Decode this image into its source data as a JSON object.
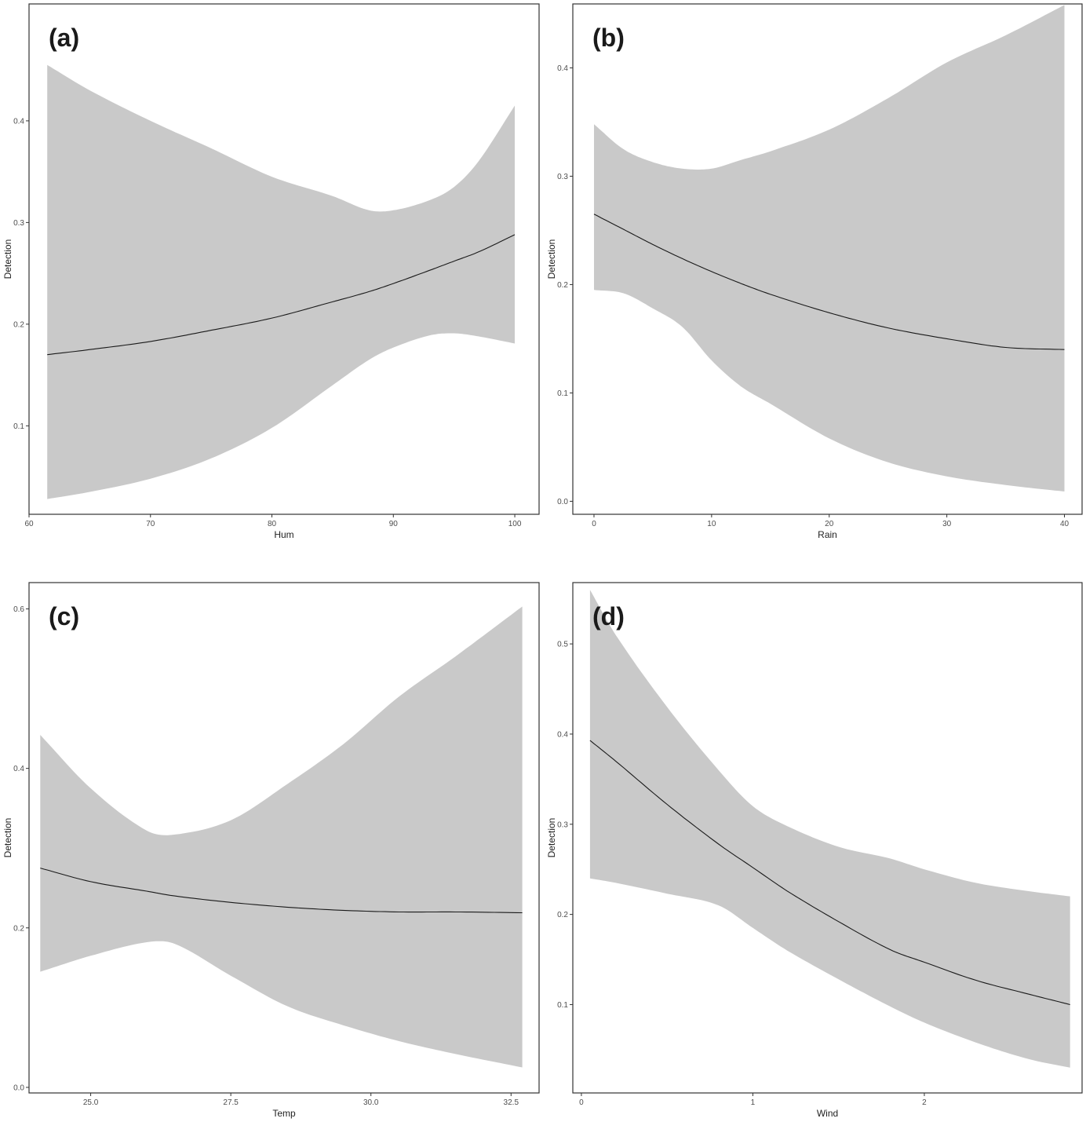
{
  "chart_data": [
    {
      "type": "line",
      "panel_label": "(a)",
      "xlabel": "Hum",
      "ylabel": "Detection",
      "xlim": [
        60,
        102
      ],
      "ylim": [
        0.013,
        0.515
      ],
      "xticks": [
        60,
        70,
        80,
        90,
        100
      ],
      "yticks": [
        0.1,
        0.2,
        0.3,
        0.4
      ],
      "xtick_labels": [
        "60",
        "70",
        "80",
        "90",
        "100"
      ],
      "ytick_labels": [
        "0.1",
        "0.2",
        "0.3",
        "0.4"
      ],
      "grid": false,
      "band_color": "#c9c9c9",
      "line_color": "#1a1a1a",
      "x": [
        61.5,
        65,
        70,
        75,
        80,
        85,
        88,
        90,
        93,
        95,
        97,
        100
      ],
      "y": [
        0.17,
        0.175,
        0.183,
        0.194,
        0.206,
        0.222,
        0.232,
        0.24,
        0.253,
        0.262,
        0.271,
        0.288
      ],
      "lower": [
        0.028,
        0.035,
        0.048,
        0.068,
        0.098,
        0.14,
        0.165,
        0.177,
        0.189,
        0.191,
        0.188,
        0.181
      ],
      "upper": [
        0.455,
        0.43,
        0.4,
        0.373,
        0.345,
        0.326,
        0.312,
        0.312,
        0.322,
        0.335,
        0.36,
        0.415
      ]
    },
    {
      "type": "line",
      "panel_label": "(b)",
      "xlabel": "Rain",
      "ylabel": "Detection",
      "xlim": [
        -1.8,
        41.5
      ],
      "ylim": [
        -0.012,
        0.459
      ],
      "xticks": [
        0,
        10,
        20,
        30,
        40
      ],
      "yticks": [
        0.0,
        0.1,
        0.2,
        0.3,
        0.4
      ],
      "xtick_labels": [
        "0",
        "10",
        "20",
        "30",
        "40"
      ],
      "ytick_labels": [
        "0.0",
        "0.1",
        "0.2",
        "0.3",
        "0.4"
      ],
      "grid": false,
      "band_color": "#c9c9c9",
      "line_color": "#1a1a1a",
      "x": [
        0,
        2.5,
        5,
        7.5,
        10,
        12.5,
        15,
        20,
        25,
        30,
        35,
        40
      ],
      "y": [
        0.265,
        0.251,
        0.237,
        0.224,
        0.212,
        0.201,
        0.191,
        0.174,
        0.16,
        0.15,
        0.142,
        0.14
      ],
      "lower": [
        0.195,
        0.192,
        0.178,
        0.161,
        0.13,
        0.106,
        0.09,
        0.058,
        0.036,
        0.023,
        0.015,
        0.009
      ],
      "upper": [
        0.348,
        0.325,
        0.313,
        0.307,
        0.307,
        0.315,
        0.323,
        0.343,
        0.372,
        0.405,
        0.43,
        0.458
      ]
    },
    {
      "type": "line",
      "panel_label": "(c)",
      "xlabel": "Temp",
      "ylabel": "Detection",
      "xlim": [
        23.9,
        33.0
      ],
      "ylim": [
        -0.007,
        0.633
      ],
      "xticks": [
        25.0,
        27.5,
        30.0,
        32.5
      ],
      "yticks": [
        0.0,
        0.2,
        0.4,
        0.6
      ],
      "xtick_labels": [
        "25.0",
        "27.5",
        "30.0",
        "32.5"
      ],
      "ytick_labels": [
        "0.0",
        "0.2",
        "0.4",
        "0.6"
      ],
      "grid": false,
      "band_color": "#c9c9c9",
      "line_color": "#1a1a1a",
      "x": [
        24.1,
        25.0,
        26.0,
        26.5,
        27.5,
        28.5,
        29.5,
        30.5,
        31.5,
        32.7
      ],
      "y": [
        0.275,
        0.258,
        0.246,
        0.24,
        0.232,
        0.226,
        0.222,
        0.22,
        0.22,
        0.219
      ],
      "lower": [
        0.145,
        0.165,
        0.182,
        0.18,
        0.14,
        0.102,
        0.078,
        0.058,
        0.042,
        0.025
      ],
      "upper": [
        0.442,
        0.375,
        0.322,
        0.317,
        0.335,
        0.38,
        0.43,
        0.49,
        0.54,
        0.603
      ]
    },
    {
      "type": "line",
      "panel_label": "(d)",
      "xlabel": "Wind",
      "ylabel": "Detection",
      "xlim": [
        -0.05,
        2.92
      ],
      "ylim": [
        0.002,
        0.568
      ],
      "xticks": [
        0,
        1,
        2
      ],
      "yticks": [
        0.1,
        0.2,
        0.3,
        0.4,
        0.5
      ],
      "xtick_labels": [
        "0",
        "1",
        "2"
      ],
      "ytick_labels": [
        "0.1",
        "0.2",
        "0.3",
        "0.4",
        "0.5"
      ],
      "grid": false,
      "band_color": "#c9c9c9",
      "line_color": "#1a1a1a",
      "x": [
        0.05,
        0.2,
        0.5,
        0.8,
        1.0,
        1.2,
        1.5,
        1.8,
        2.0,
        2.3,
        2.6,
        2.85
      ],
      "y": [
        0.393,
        0.37,
        0.322,
        0.278,
        0.252,
        0.226,
        0.192,
        0.161,
        0.147,
        0.127,
        0.112,
        0.1
      ],
      "lower": [
        0.24,
        0.235,
        0.223,
        0.21,
        0.185,
        0.16,
        0.128,
        0.098,
        0.08,
        0.058,
        0.04,
        0.03
      ],
      "upper": [
        0.56,
        0.51,
        0.43,
        0.36,
        0.32,
        0.298,
        0.275,
        0.262,
        0.25,
        0.235,
        0.226,
        0.22
      ]
    }
  ]
}
